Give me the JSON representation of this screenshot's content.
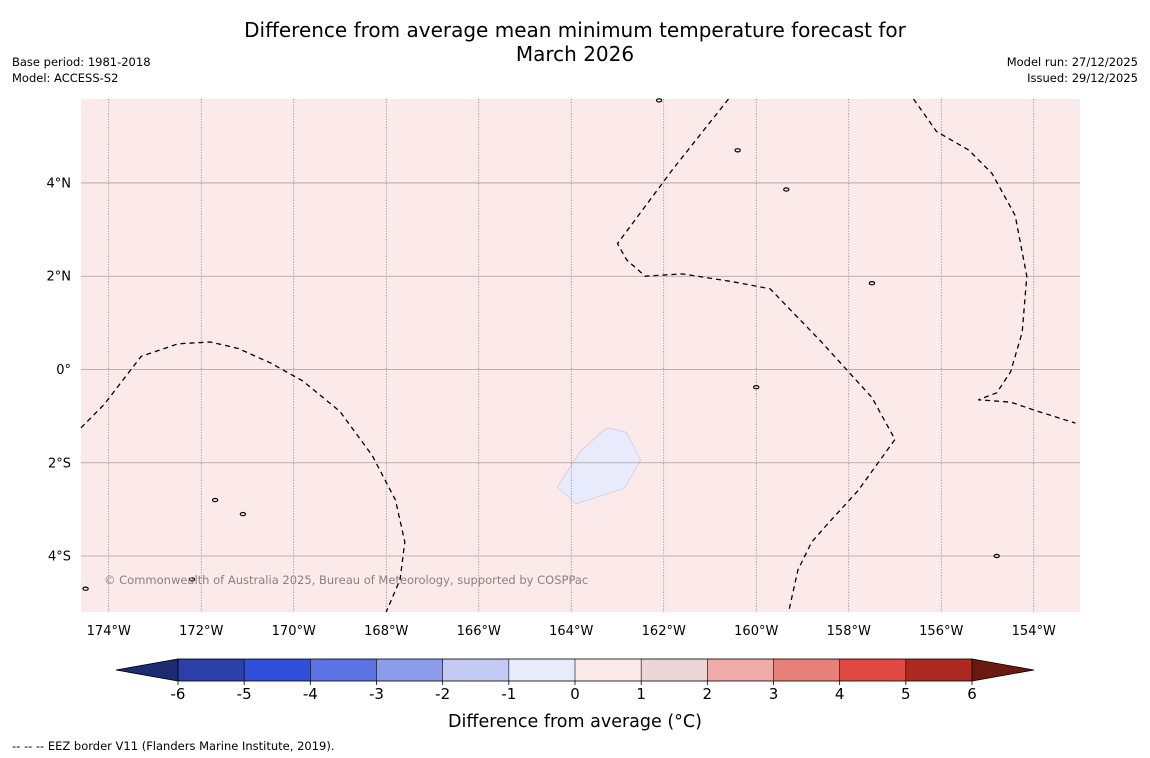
{
  "title": {
    "line1": "Difference from average mean minimum temperature forecast for",
    "line2": "March 2026"
  },
  "meta_left": {
    "base_period": "Base period: 1981-2018",
    "model": "Model: ACCESS-S2"
  },
  "meta_right": {
    "model_run": "Model run: 27/12/2025",
    "issued": "Issued: 29/12/2025"
  },
  "copyright": "© Commonwealth of Australia 2025, Bureau of Meteorology, supported by COSPPac",
  "map": {
    "lon_range": [
      -174.6,
      -153.0
    ],
    "lat_range": [
      -5.2,
      5.8
    ],
    "lon_ticks": [
      {
        "value": -174,
        "label": "174°W"
      },
      {
        "value": -172,
        "label": "172°W"
      },
      {
        "value": -170,
        "label": "170°W"
      },
      {
        "value": -168,
        "label": "168°W"
      },
      {
        "value": -166,
        "label": "166°W"
      },
      {
        "value": -164,
        "label": "164°W"
      },
      {
        "value": -162,
        "label": "162°W"
      },
      {
        "value": -160,
        "label": "160°W"
      },
      {
        "value": -158,
        "label": "158°W"
      },
      {
        "value": -156,
        "label": "156°W"
      },
      {
        "value": -154,
        "label": "154°W"
      }
    ],
    "lat_ticks": [
      {
        "value": 4,
        "label": "4°N"
      },
      {
        "value": 2,
        "label": "2°N"
      },
      {
        "value": 0,
        "label": "0°"
      },
      {
        "value": -2,
        "label": "2°S"
      },
      {
        "value": -4,
        "label": "4°S"
      }
    ],
    "background_category": "1 to 2",
    "background_color": "#fbeae9",
    "cool_region": {
      "category": "-1 to 0",
      "color": "#e7ebfb",
      "polygon": [
        [
          -163.3,
          -1.3
        ],
        [
          -163.2,
          -1.25
        ],
        [
          -162.8,
          -1.35
        ],
        [
          -162.5,
          -1.95
        ],
        [
          -162.85,
          -2.55
        ],
        [
          -163.9,
          -2.88
        ],
        [
          -164.3,
          -2.52
        ],
        [
          -163.8,
          -1.75
        ]
      ]
    },
    "eez_lines": [
      [
        [
          -174.6,
          -1.25
        ],
        [
          -174.1,
          -0.75
        ],
        [
          -173.3,
          0.28
        ],
        [
          -172.5,
          0.55
        ],
        [
          -171.8,
          0.59
        ],
        [
          -171.2,
          0.45
        ],
        [
          -170.5,
          0.14
        ],
        [
          -169.8,
          -0.25
        ],
        [
          -169.0,
          -0.9
        ],
        [
          -168.3,
          -1.85
        ],
        [
          -167.8,
          -2.8
        ],
        [
          -167.6,
          -3.7
        ],
        [
          -167.7,
          -4.5
        ],
        [
          -168.0,
          -5.2
        ]
      ],
      [
        [
          -160.6,
          5.8
        ],
        [
          -161.8,
          4.3
        ],
        [
          -162.7,
          3.1
        ],
        [
          -163.0,
          2.7
        ],
        [
          -162.8,
          2.35
        ],
        [
          -162.4,
          2.0
        ],
        [
          -161.6,
          2.05
        ],
        [
          -160.5,
          1.88
        ],
        [
          -159.7,
          1.73
        ],
        [
          -158.6,
          0.6
        ],
        [
          -157.5,
          -0.6
        ],
        [
          -157.0,
          -1.5
        ],
        [
          -157.8,
          -2.6
        ],
        [
          -158.4,
          -3.25
        ],
        [
          -158.8,
          -3.7
        ],
        [
          -159.1,
          -4.3
        ],
        [
          -159.3,
          -5.2
        ]
      ],
      [
        [
          -156.6,
          5.8
        ],
        [
          -156.1,
          5.1
        ],
        [
          -155.4,
          4.7
        ],
        [
          -154.9,
          4.2
        ],
        [
          -154.4,
          3.3
        ],
        [
          -154.15,
          2.0
        ],
        [
          -154.25,
          0.8
        ],
        [
          -154.5,
          -0.05
        ],
        [
          -154.8,
          -0.5
        ],
        [
          -155.2,
          -0.65
        ],
        [
          -154.5,
          -0.7
        ],
        [
          -153.9,
          -0.9
        ],
        [
          -153.1,
          -1.15
        ]
      ]
    ],
    "islands": [
      [
        -159.35,
        3.86
      ],
      [
        -157.5,
        1.85
      ],
      [
        -171.7,
        -2.8
      ],
      [
        -171.1,
        -3.1
      ],
      [
        -172.2,
        -4.5
      ],
      [
        -160.4,
        4.7
      ],
      [
        -160.0,
        -0.38
      ],
      [
        -154.8,
        -4.0
      ],
      [
        -174.5,
        -4.7
      ],
      [
        -162.1,
        5.77
      ]
    ]
  },
  "colorbar": {
    "label": "Difference from average (°C)",
    "tick_labels": [
      "-6",
      "-5",
      "-4",
      "-3",
      "-2",
      "-1",
      "0",
      "1",
      "2",
      "3",
      "4",
      "5",
      "6"
    ],
    "under_color": "#1b2b74",
    "over_color": "#6b1a12",
    "colors": [
      "#2a3fa8",
      "#2f4fd8",
      "#5a72e2",
      "#8b9ceb",
      "#c3cbf5",
      "#e7ebfb",
      "#fbeae9",
      "#ecd6d5",
      "#eeaba7",
      "#e8807a",
      "#de4a41",
      "#ac2a22"
    ]
  },
  "footer": "--  --  -- EEZ border V11 (Flanders Marine Institute, 2019)."
}
